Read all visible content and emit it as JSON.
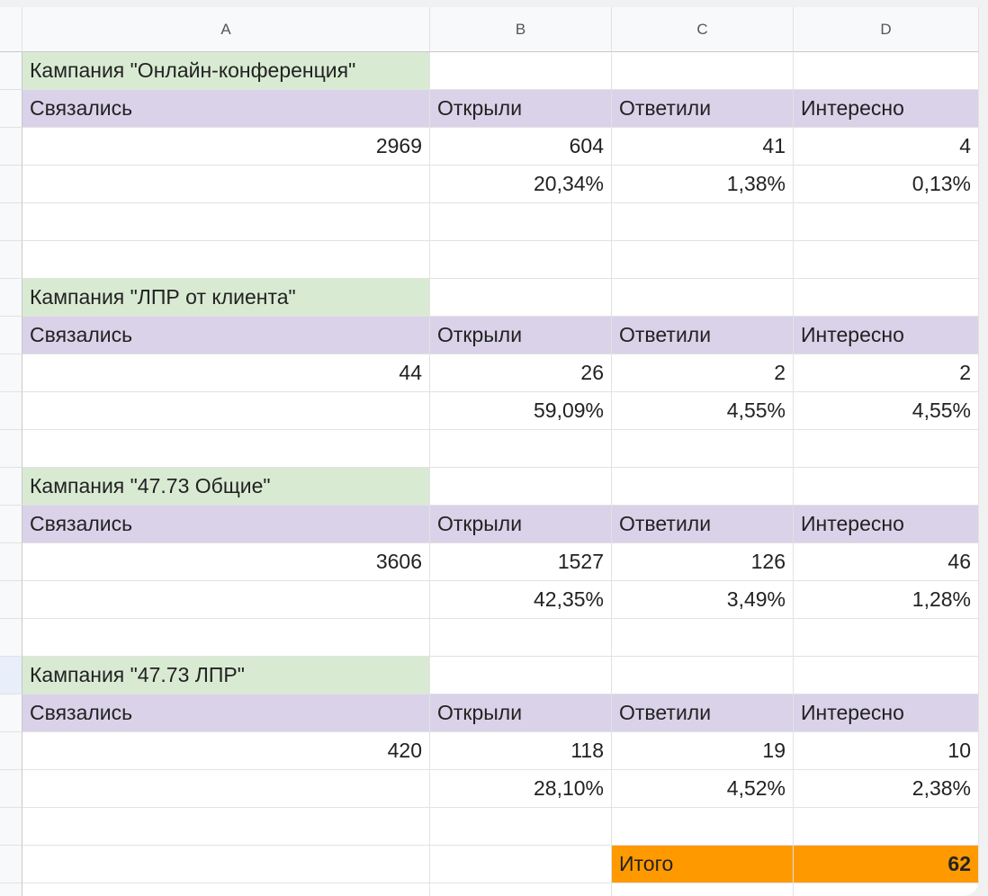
{
  "columns": [
    "A",
    "B",
    "C",
    "D"
  ],
  "campaigns": [
    {
      "title": "Кампания \"Онлайн-конференция\"",
      "headers": [
        "Связались",
        "Открыли",
        "Ответили",
        "Интересно"
      ],
      "counts": [
        2969,
        604,
        41,
        4
      ],
      "percents": [
        "20,34%",
        "1,38%",
        "0,13%"
      ]
    },
    {
      "title": "Кампания \"ЛПР от клиента\"",
      "headers": [
        "Связались",
        "Открыли",
        "Ответили",
        "Интересно"
      ],
      "counts": [
        44,
        26,
        2,
        2
      ],
      "percents": [
        "59,09%",
        "4,55%",
        "4,55%"
      ]
    },
    {
      "title": "Кампания \"47.73 Общие\"",
      "headers": [
        "Связались",
        "Открыли",
        "Ответили",
        "Интересно"
      ],
      "counts": [
        3606,
        1527,
        126,
        46
      ],
      "percents": [
        "42,35%",
        "3,49%",
        "1,28%"
      ]
    },
    {
      "title": "Кампания \"47.73 ЛПР\"",
      "headers": [
        "Связались",
        "Открыли",
        "Ответили",
        "Интересно"
      ],
      "counts": [
        420,
        118,
        19,
        10
      ],
      "percents": [
        "28,10%",
        "4,52%",
        "2,38%"
      ]
    }
  ],
  "total": {
    "label": "Итого",
    "value": 62
  }
}
